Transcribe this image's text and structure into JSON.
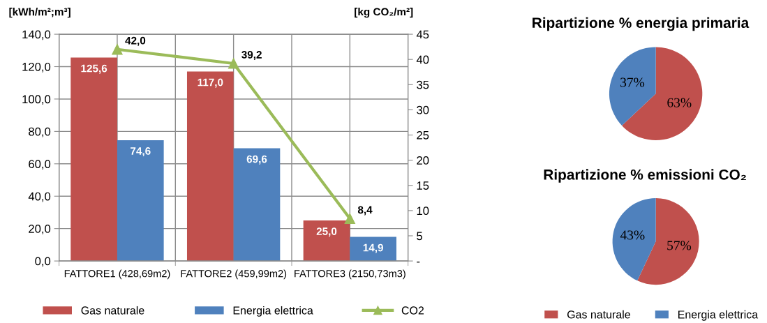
{
  "chart_data": [
    {
      "type": "bar",
      "categories": [
        "FATTORE1 (428,69m2)",
        "FATTORE2 (459,99m2)",
        "FATTORE3 (2150,73m3)"
      ],
      "series": [
        {
          "name": "Gas naturale",
          "color": "#c0504d",
          "values": [
            125.6,
            117.0,
            25.0
          ],
          "value_labels": [
            "125,6",
            "117,0",
            "25,0"
          ]
        },
        {
          "name": "Energia elettrica",
          "color": "#4f81bd",
          "values": [
            74.6,
            69.6,
            14.9
          ],
          "value_labels": [
            "74,6",
            "69,6",
            "14,9"
          ]
        },
        {
          "name": "CO2",
          "type": "line",
          "axis": "y2",
          "color": "#9bbb59",
          "marker": "triangle",
          "values": [
            42.0,
            39.2,
            8.4
          ],
          "value_labels": [
            "42,0",
            "39,2",
            "8,4"
          ]
        }
      ],
      "ylabel": "[kWh/m²;m³]",
      "y2label": "[kg CO₂/m²]",
      "ylim": [
        0,
        140
      ],
      "yticks": [
        {
          "value": 0,
          "label": "0,0"
        },
        {
          "value": 20,
          "label": "20,0"
        },
        {
          "value": 40,
          "label": "40,0"
        },
        {
          "value": 60,
          "label": "60,0"
        },
        {
          "value": 80,
          "label": "80,0"
        },
        {
          "value": 100,
          "label": "100,0"
        },
        {
          "value": 120,
          "label": "120,0"
        },
        {
          "value": 140,
          "label": "140,0"
        }
      ],
      "y2lim": [
        0,
        45
      ],
      "y2ticks": [
        {
          "value": 0,
          "label": "-"
        },
        5,
        10,
        15,
        20,
        25,
        30,
        35,
        40,
        45
      ],
      "grid": true,
      "legend": "bottom"
    },
    {
      "type": "pie",
      "title": "Ripartizione % energia primaria",
      "categories": [
        "Gas naturale",
        "Energia elettrica"
      ],
      "values": [
        63,
        37
      ],
      "colors": [
        "#c0504d",
        "#4f81bd"
      ],
      "value_labels": [
        "63%",
        "37%"
      ],
      "legend": "bottom"
    },
    {
      "type": "pie",
      "title": "Ripartizione % emissioni CO₂",
      "categories": [
        null,
        null
      ],
      "values": [
        57,
        43
      ],
      "colors": [
        "#c0504d",
        "#4f81bd"
      ],
      "value_labels": [
        "57%",
        "43%"
      ]
    }
  ]
}
